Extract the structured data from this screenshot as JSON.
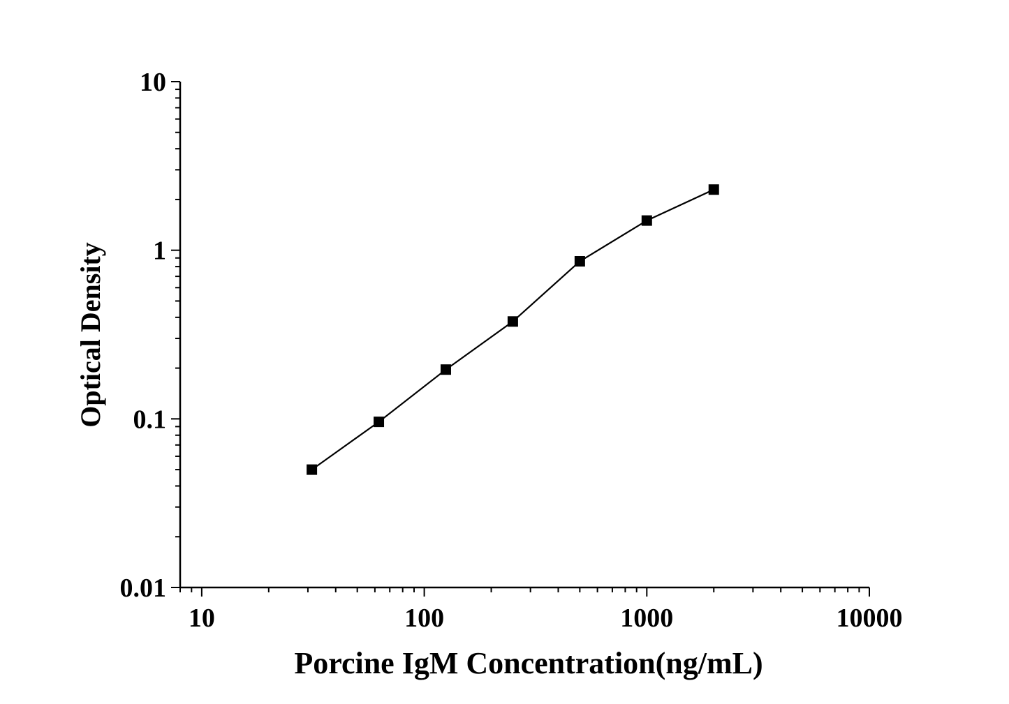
{
  "chart_data": {
    "type": "line",
    "title": "",
    "xlabel": "Porcine IgM Concentration(ng/mL)",
    "ylabel": "Optical Density",
    "x_scale": "log",
    "y_scale": "log",
    "xlim": [
      8,
      10000
    ],
    "ylim": [
      0.01,
      10
    ],
    "x_ticks": [
      10,
      100,
      1000,
      10000
    ],
    "x_tick_labels": [
      "10",
      "100",
      "1000",
      "10000"
    ],
    "y_ticks": [
      0.01,
      0.1,
      1,
      10
    ],
    "y_tick_labels": [
      "0.01",
      "0.1",
      "1",
      "10"
    ],
    "grid": false,
    "legend": "none",
    "series": [
      {
        "marker": "square",
        "color": "#000000",
        "x": [
          31.25,
          62.5,
          125,
          250,
          500,
          1000,
          2000
        ],
        "y": [
          0.05,
          0.096,
          0.196,
          0.378,
          0.86,
          1.5,
          2.29
        ]
      }
    ]
  }
}
